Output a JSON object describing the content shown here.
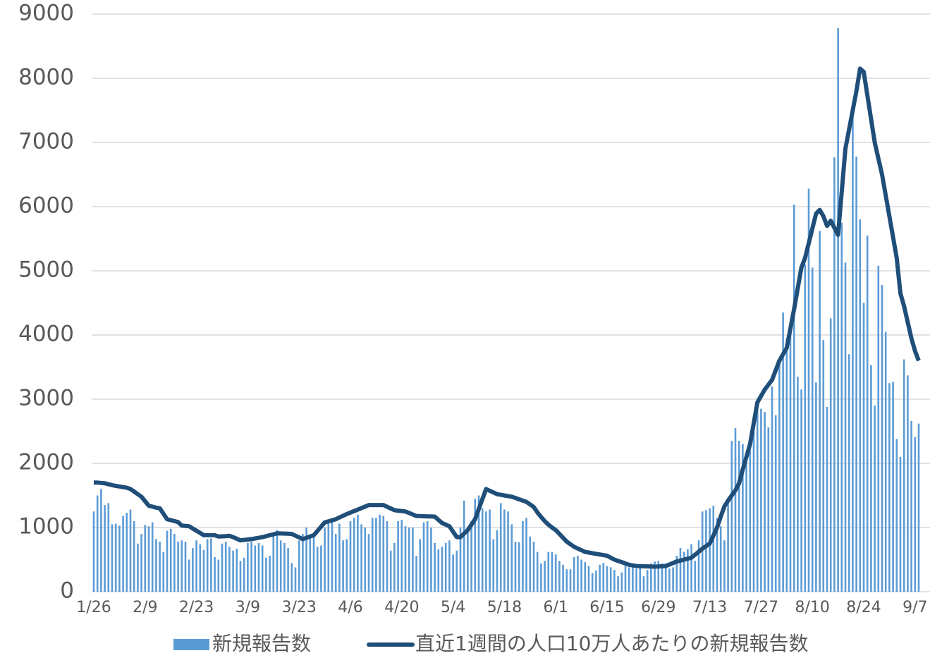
{
  "chart_data": {
    "type": "bar",
    "categories": [
      "1/26",
      null,
      null,
      null,
      null,
      null,
      null,
      null,
      null,
      null,
      null,
      null,
      null,
      null,
      "2/9",
      null,
      null,
      null,
      null,
      null,
      null,
      null,
      null,
      null,
      null,
      null,
      null,
      null,
      "2/23",
      null,
      null,
      null,
      null,
      null,
      null,
      null,
      null,
      null,
      null,
      null,
      null,
      null,
      "3/9",
      null,
      null,
      null,
      null,
      null,
      null,
      null,
      null,
      null,
      null,
      null,
      null,
      null,
      "3/23",
      null,
      null,
      null,
      null,
      null,
      null,
      null,
      null,
      null,
      null,
      null,
      null,
      null,
      "4/6",
      null,
      null,
      null,
      null,
      null,
      null,
      null,
      null,
      null,
      null,
      null,
      null,
      null,
      "4/20",
      null,
      null,
      null,
      null,
      null,
      null,
      null,
      null,
      null,
      null,
      null,
      null,
      null,
      "5/4",
      null,
      null,
      null,
      null,
      null,
      null,
      null,
      null,
      null,
      null,
      null,
      null,
      null,
      "5/18",
      null,
      null,
      null,
      null,
      null,
      null,
      null,
      null,
      null,
      null,
      null,
      null,
      null,
      "6/1",
      null,
      null,
      null,
      null,
      null,
      null,
      null,
      null,
      null,
      null,
      null,
      null,
      null,
      "6/15",
      null,
      null,
      null,
      null,
      null,
      null,
      null,
      null,
      null,
      null,
      null,
      null,
      null,
      "6/29",
      null,
      null,
      null,
      null,
      null,
      null,
      null,
      null,
      null,
      null,
      null,
      null,
      null,
      "7/13",
      null,
      null,
      null,
      null,
      null,
      null,
      null,
      null,
      null,
      null,
      null,
      null,
      null,
      "7/27",
      null,
      null,
      null,
      null,
      null,
      null,
      null,
      null,
      null,
      null,
      null,
      null,
      null,
      "8/10",
      null,
      null,
      null,
      null,
      null,
      null,
      null,
      null,
      null,
      null,
      null,
      null,
      null,
      "8/24",
      null,
      null,
      null,
      null,
      null,
      null,
      null,
      null,
      null,
      null,
      null,
      null,
      null,
      "9/7",
      null
    ],
    "series": [
      {
        "name": "新規報告数",
        "type": "bar",
        "color": "#5b9bd5",
        "values": [
          1250,
          1500,
          1600,
          1350,
          1380,
          1050,
          1060,
          1030,
          1180,
          1230,
          1280,
          1100,
          750,
          900,
          1040,
          1020,
          1080,
          820,
          780,
          620,
          950,
          980,
          900,
          780,
          800,
          780,
          500,
          680,
          800,
          740,
          650,
          820,
          830,
          540,
          500,
          750,
          780,
          700,
          640,
          670,
          480,
          530,
          760,
          780,
          720,
          760,
          720,
          530,
          560,
          900,
          960,
          800,
          760,
          680,
          450,
          380,
          800,
          900,
          1000,
          860,
          880,
          700,
          720,
          1000,
          1080,
          1120,
          900,
          1060,
          800,
          820,
          1100,
          1150,
          1200,
          1050,
          1000,
          900,
          1150,
          1150,
          1200,
          1180,
          1100,
          640,
          760,
          1100,
          1120,
          1020,
          1000,
          1000,
          560,
          820,
          1080,
          1100,
          1000,
          760,
          660,
          700,
          760,
          800,
          580,
          640,
          1000,
          1420,
          1000,
          1100,
          1450,
          1500,
          1300,
          1250,
          1280,
          820,
          960,
          1380,
          1280,
          1250,
          1050,
          780,
          770,
          1100,
          1150,
          860,
          780,
          620,
          440,
          480,
          620,
          620,
          580,
          480,
          420,
          350,
          350,
          540,
          560,
          500,
          460,
          400,
          290,
          330,
          420,
          450,
          400,
          380,
          340,
          240,
          300,
          400,
          380,
          390,
          360,
          380,
          240,
          340,
          440,
          470,
          480,
          440,
          440,
          360,
          380,
          560,
          680,
          620,
          660,
          740,
          480,
          800,
          1250,
          1270,
          1300,
          1340,
          1150,
          1020,
          800,
          1420,
          2350,
          2550,
          2350,
          2300,
          2050,
          2200,
          2500,
          2850,
          2850,
          2800,
          2560,
          3200,
          2750,
          3550,
          4350,
          3950,
          4050,
          6030,
          3350,
          3150,
          5100,
          6280,
          5050,
          3260,
          5620,
          3920,
          2880,
          4260,
          6770,
          8780,
          5750,
          5130,
          3700,
          7420,
          6780,
          5800,
          4500,
          5550,
          3530,
          2900,
          5080,
          4780,
          4050,
          3250,
          3270,
          2380,
          2100,
          3620,
          3370,
          2660,
          2410,
          2620
        ]
      },
      {
        "name": "直近1週間の人口10万人あたりの新規報告数",
        "type": "line",
        "color": "#1f4e79",
        "values": [
          1700,
          1700,
          1695,
          1690,
          1675,
          1660,
          1650,
          1640,
          1630,
          1620,
          1600,
          1560,
          1520,
          1480,
          1410,
          1340,
          1325,
          1310,
          1300,
          1215,
          1130,
          1115,
          1100,
          1085,
          1030,
          1025,
          1020,
          985,
          950,
          915,
          880,
          880,
          880,
          880,
          860,
          863,
          866,
          870,
          850,
          825,
          800,
          807,
          813,
          820,
          830,
          840,
          850,
          865,
          880,
          895,
          910,
          908,
          905,
          903,
          900,
          873,
          847,
          820,
          840,
          860,
          880,
          947,
          1013,
          1080,
          1097,
          1113,
          1130,
          1157,
          1183,
          1210,
          1233,
          1256,
          1279,
          1302,
          1326,
          1350,
          1350,
          1350,
          1350,
          1350,
          1323,
          1297,
          1270,
          1263,
          1257,
          1250,
          1227,
          1203,
          1180,
          1178,
          1176,
          1174,
          1172,
          1170,
          1120,
          1070,
          1045,
          1020,
          935,
          850,
          850,
          905,
          960,
          1045,
          1130,
          1287,
          1443,
          1600,
          1573,
          1547,
          1520,
          1510,
          1500,
          1490,
          1480,
          1460,
          1440,
          1420,
          1400,
          1360,
          1320,
          1235,
          1165,
          1100,
          1045,
          1000,
          960,
          900,
          840,
          780,
          740,
          700,
          673,
          647,
          620,
          610,
          600,
          590,
          580,
          570,
          560,
          530,
          500,
          480,
          460,
          440,
          420,
          410,
          400,
          398,
          396,
          394,
          392,
          390,
          393,
          397,
          400,
          423,
          447,
          470,
          485,
          500,
          515,
          530,
          577,
          623,
          670,
          710,
          750,
          875,
          1000,
          1170,
          1330,
          1420,
          1500,
          1580,
          1690,
          1900,
          2100,
          2300,
          2625,
          2950,
          3050,
          3150,
          3225,
          3300,
          3450,
          3600,
          3700,
          3800,
          4100,
          4400,
          4725,
          5050,
          5200,
          5430,
          5660,
          5890,
          5950,
          5850,
          5700,
          5780,
          5670,
          5560,
          6230,
          6900,
          7200,
          7500,
          7800,
          8150,
          8100,
          7733,
          7367,
          7000,
          6750,
          6500,
          6175,
          5850,
          5525,
          5200,
          4650,
          4450,
          4200,
          3950,
          3750,
          3600
        ]
      }
    ],
    "ylim": [
      0,
      9000
    ],
    "yticks": [
      0,
      1000,
      2000,
      3000,
      4000,
      5000,
      6000,
      7000,
      8000,
      9000
    ],
    "grid": true,
    "legend": "bottom"
  }
}
